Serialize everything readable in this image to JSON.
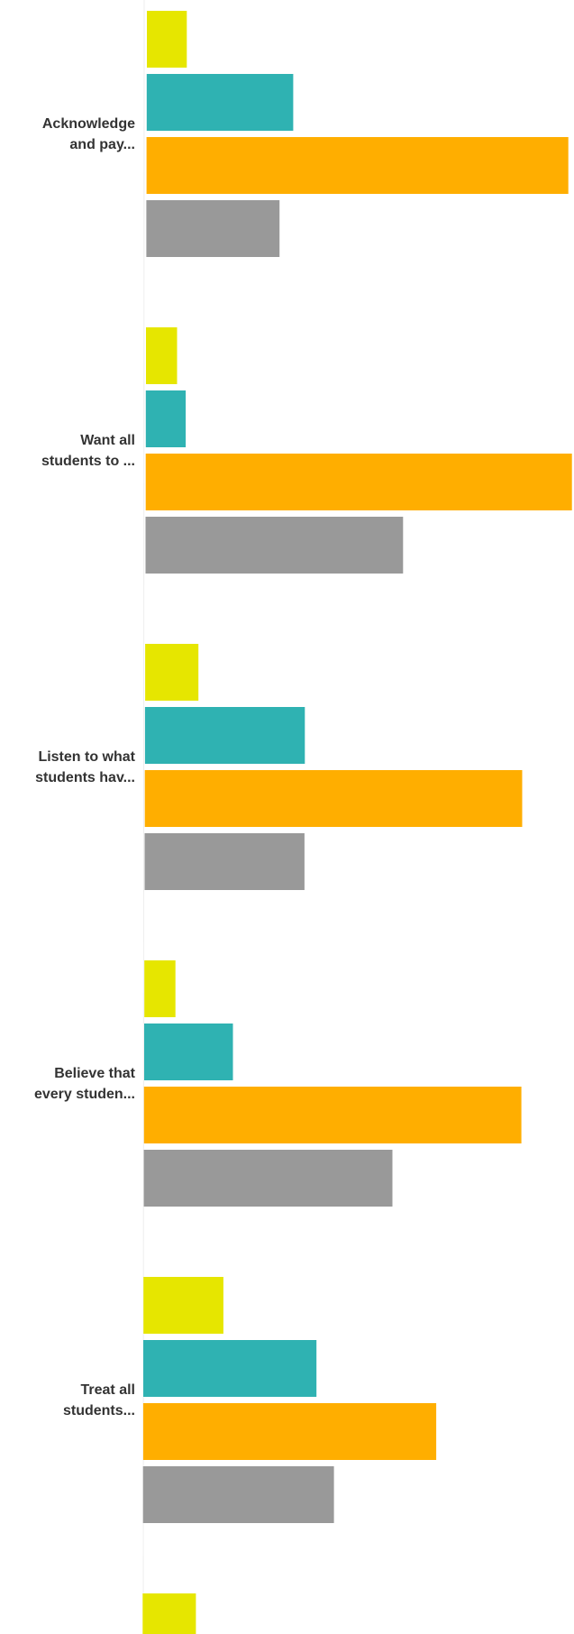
{
  "chart_data": {
    "type": "bar",
    "orientation": "horizontal",
    "categories": [
      [
        "Acknowledge",
        "and pay..."
      ],
      [
        "Want all",
        "students to ..."
      ],
      [
        "Listen to what",
        "students hav..."
      ],
      [
        "Believe that",
        "every studen..."
      ],
      [
        "Treat all",
        "students..."
      ],
      [
        "",
        ""
      ]
    ],
    "series": [
      {
        "color": "#e6e600",
        "values": [
          4.5,
          3.5,
          6,
          3.5,
          9,
          6
        ]
      },
      {
        "color": "#2fb2b2",
        "values": [
          16.5,
          4.5,
          18,
          10,
          19.5,
          null
        ]
      },
      {
        "color": "#ffae00",
        "values": [
          47.5,
          48,
          42.5,
          42.5,
          33,
          null
        ]
      },
      {
        "color": "#999999",
        "values": [
          15,
          29,
          18,
          28,
          21.5,
          null
        ]
      }
    ],
    "xlim": [
      0,
      48
    ],
    "grid": false,
    "legend": "none"
  }
}
